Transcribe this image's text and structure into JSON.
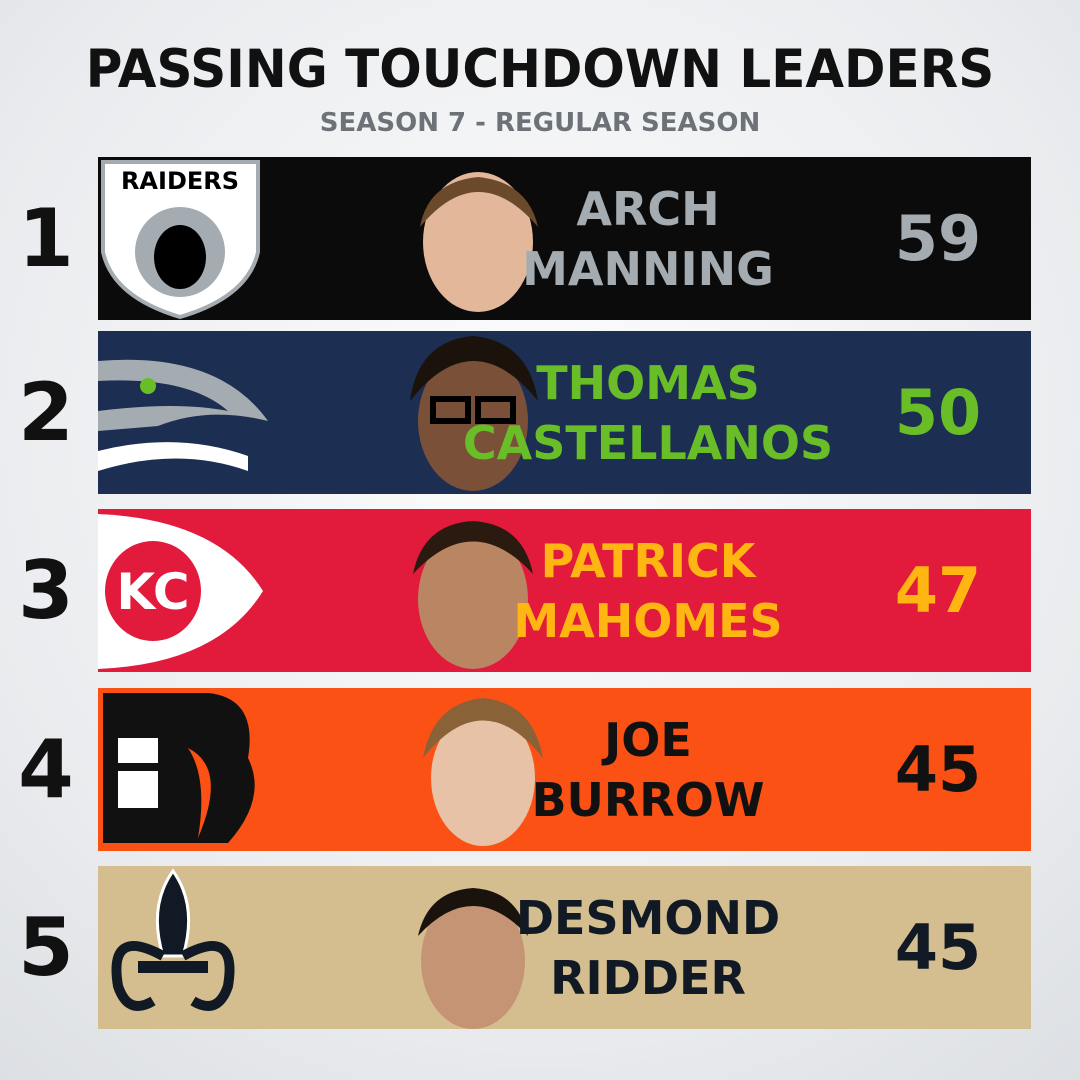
{
  "header": {
    "title": "PASSING TOUCHDOWN LEADERS",
    "subtitle": "SEASON 7 - REGULAR SEASON"
  },
  "rows": [
    {
      "rank": 1,
      "logo_text": "RAIDERS",
      "name": [
        "ARCH",
        "MANNING"
      ],
      "touchdowns": 59
    },
    {
      "rank": 2,
      "name": [
        "THOMAS",
        "CASTELLANOS"
      ],
      "touchdowns": 50
    },
    {
      "rank": 3,
      "name": [
        "PATRICK",
        "MAHOMES"
      ],
      "touchdowns": 47
    },
    {
      "rank": 4,
      "name": [
        "JOE",
        "BURROW"
      ],
      "touchdowns": 45
    },
    {
      "rank": 5,
      "name": [
        "DESMOND",
        "RIDDER"
      ],
      "touchdowns": 45
    }
  ]
}
